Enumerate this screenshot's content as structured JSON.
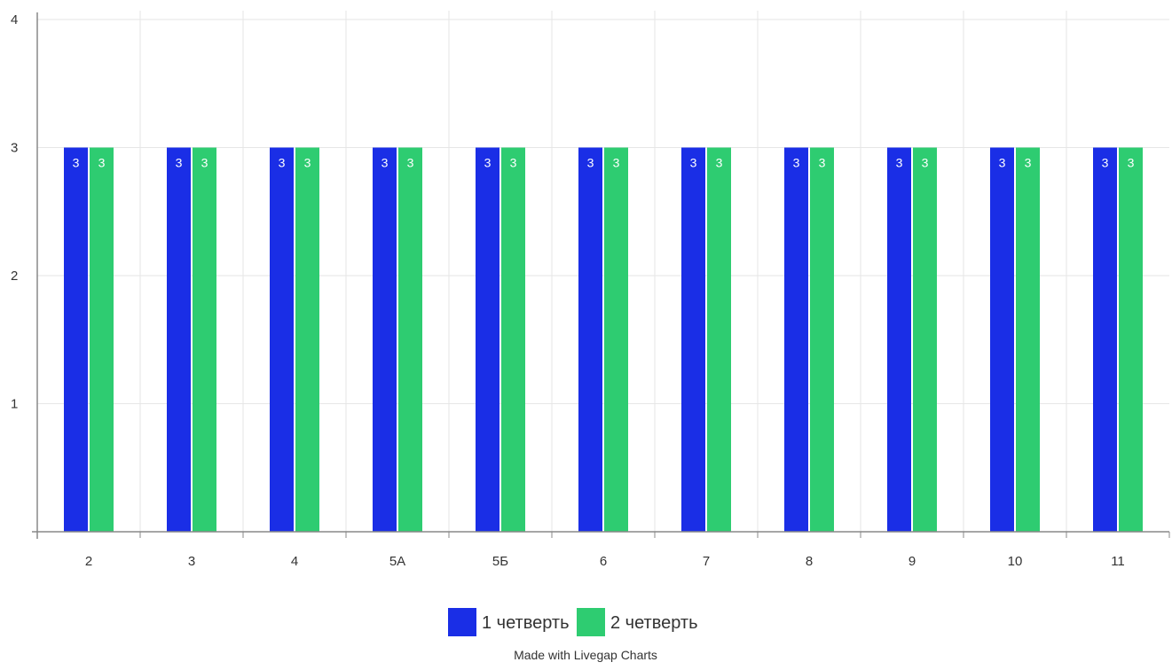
{
  "chart_data": {
    "type": "bar",
    "categories": [
      "2",
      "3",
      "4",
      "5А",
      "5Б",
      "6",
      "7",
      "8",
      "9",
      "10",
      "11"
    ],
    "series": [
      {
        "name": "1 четверть",
        "values": [
          3,
          3,
          3,
          3,
          3,
          3,
          3,
          3,
          3,
          3,
          3
        ],
        "color": "#1a2ee6"
      },
      {
        "name": "2 четверть",
        "values": [
          3,
          3,
          3,
          3,
          3,
          3,
          3,
          3,
          3,
          3,
          3
        ],
        "color": "#2ecc71"
      }
    ],
    "ylim": [
      0,
      4
    ],
    "yticks": [
      1,
      2,
      3,
      4
    ],
    "grid": true,
    "data_labels": true,
    "legend_position": "bottom-center",
    "title": "",
    "xlabel": "",
    "ylabel": ""
  },
  "credit": "Made with Livegap Charts",
  "colors": {
    "axis": "#888888",
    "grid": "#e6e6e6",
    "label_text": "#333333",
    "bar_label_text": "#ffffff"
  }
}
